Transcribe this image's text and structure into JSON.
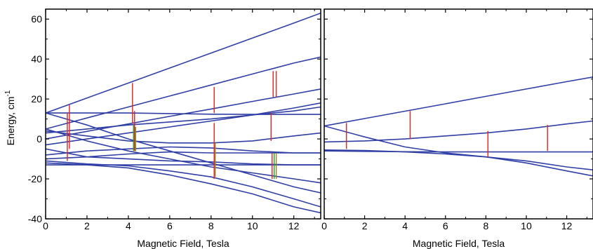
{
  "colors": {
    "curve": "#2f3fa5",
    "transition_red": "#e32222",
    "transition_green": "#2e9a2e",
    "transition_olive": "#8a8a22",
    "axis": "#000000"
  },
  "shared_axis": {
    "ylabel": "Energy, cm",
    "ylabel_superscript": "-1"
  },
  "chart_data": [
    {
      "type": "line",
      "panel": "left",
      "xlabel": "Magnetic Field, Tesla",
      "ylabel": "Energy, cm-1",
      "xlim": [
        0,
        13.3
      ],
      "ylim": [
        -40,
        65
      ],
      "xticks": [
        "0",
        "2",
        "4",
        "6",
        "8",
        "10",
        "12"
      ],
      "yticks": [
        "-40",
        "-20",
        "0",
        "20",
        "40",
        "60"
      ],
      "series": [
        {
          "x": [
            0,
            2,
            4,
            6,
            8,
            10,
            12,
            13.3
          ],
          "values": [
            13,
            20.5,
            28,
            35.5,
            43,
            50.5,
            58,
            63
          ]
        },
        {
          "x": [
            0,
            2,
            4,
            6,
            8,
            10,
            12,
            13.3
          ],
          "values": [
            5,
            10.5,
            16,
            21.5,
            27,
            32.5,
            38,
            41
          ]
        },
        {
          "x": [
            0,
            2,
            4,
            6,
            8,
            10,
            12,
            13.3
          ],
          "values": [
            0,
            3.8,
            7.5,
            11.3,
            15,
            18.8,
            22.5,
            25
          ]
        },
        {
          "x": [
            0,
            2,
            4,
            6,
            8,
            10,
            12,
            13.3
          ],
          "values": [
            -3,
            0,
            3,
            6,
            9,
            12,
            15.5,
            18
          ]
        },
        {
          "x": [
            0,
            2,
            4,
            6,
            8,
            10,
            12,
            13.3
          ],
          "values": [
            13,
            13,
            13,
            12.7,
            12.4,
            12.3,
            12.3,
            12.3
          ]
        },
        {
          "x": [
            0,
            2,
            4,
            6,
            8,
            10,
            12,
            13.3
          ],
          "values": [
            3,
            5,
            7,
            8.5,
            10,
            12,
            14,
            16
          ]
        },
        {
          "x": [
            0,
            2,
            4,
            6,
            8,
            10,
            12,
            13.3
          ],
          "values": [
            4,
            1.5,
            -1,
            -2,
            -2,
            -1,
            1.5,
            3
          ]
        },
        {
          "x": [
            0,
            2,
            4,
            6,
            8,
            10,
            12,
            13.3
          ],
          "values": [
            -10,
            -9,
            -7.5,
            -6.5,
            -7,
            -7,
            -7,
            -7
          ]
        },
        {
          "x": [
            0,
            2,
            4,
            6,
            8,
            10,
            12,
            13.3
          ],
          "values": [
            -8,
            -6,
            -5,
            -4,
            -4.5,
            -6,
            -7,
            -7
          ]
        },
        {
          "x": [
            0,
            2,
            4,
            6,
            8,
            10,
            12,
            13.3
          ],
          "values": [
            -13,
            -13,
            -13,
            -13,
            -13,
            -13,
            -13,
            -13
          ]
        },
        {
          "x": [
            0,
            2,
            4,
            6,
            8,
            10,
            12,
            13.3
          ],
          "values": [
            -5,
            -9,
            -10,
            -11,
            -11.5,
            -12.5,
            -13,
            -13
          ]
        },
        {
          "x": [
            0,
            2,
            4,
            6,
            8,
            10,
            12,
            13.3
          ],
          "values": [
            5,
            -1,
            -6,
            -10,
            -14,
            -17,
            -20,
            -22
          ]
        },
        {
          "x": [
            0,
            2,
            4,
            6,
            8,
            10,
            12,
            13.3
          ],
          "values": [
            13,
            7,
            0,
            -6,
            -12,
            -18,
            -24,
            -27
          ]
        },
        {
          "x": [
            0,
            2,
            4,
            6,
            8,
            10,
            12,
            13.3
          ],
          "values": [
            -11,
            -12.5,
            -13.5,
            -16,
            -19,
            -24,
            -30,
            -34
          ]
        },
        {
          "x": [
            0,
            2,
            4,
            6,
            8,
            10,
            12,
            13.3
          ],
          "values": [
            -12,
            -13,
            -14.5,
            -18,
            -22.5,
            -27.5,
            -34,
            -37
          ]
        }
      ],
      "transitions": [
        {
          "x": 1.05,
          "y1": -11,
          "y2": 13,
          "color": "red"
        },
        {
          "x": 1.15,
          "y1": -5,
          "y2": 17,
          "color": "red"
        },
        {
          "x": 4.2,
          "y1": 8,
          "y2": 28,
          "color": "red"
        },
        {
          "x": 4.3,
          "y1": -6,
          "y2": 14,
          "color": "red"
        },
        {
          "x": 4.25,
          "y1": -6,
          "y2": 7,
          "color": "green"
        },
        {
          "x": 4.35,
          "y1": -6,
          "y2": 6,
          "color": "olive"
        },
        {
          "x": 8.15,
          "y1": 13,
          "y2": 26,
          "color": "red"
        },
        {
          "x": 8.15,
          "y1": -20,
          "y2": 8,
          "color": "red"
        },
        {
          "x": 8.2,
          "y1": -19,
          "y2": -2,
          "color": "olive"
        },
        {
          "x": 11.0,
          "y1": 21,
          "y2": 34,
          "color": "red"
        },
        {
          "x": 11.15,
          "y1": 21,
          "y2": 34,
          "color": "red"
        },
        {
          "x": 10.9,
          "y1": -1,
          "y2": 13,
          "color": "red"
        },
        {
          "x": 10.95,
          "y1": -20,
          "y2": -7,
          "color": "red"
        },
        {
          "x": 11.05,
          "y1": -20,
          "y2": -7,
          "color": "green"
        },
        {
          "x": 11.15,
          "y1": -20,
          "y2": -7,
          "color": "olive"
        }
      ]
    },
    {
      "type": "line",
      "panel": "right",
      "xlabel": "Magnetic Field, Tesla",
      "xlim": [
        0,
        13.3
      ],
      "ylim": [
        -40,
        65
      ],
      "xticks": [
        "0",
        "2",
        "4",
        "6",
        "8",
        "10",
        "12"
      ],
      "series": [
        {
          "x": [
            0,
            2,
            4,
            6,
            8,
            10,
            12,
            13.3
          ],
          "values": [
            6.5,
            10.2,
            13.9,
            17.6,
            21.3,
            25,
            28.7,
            31
          ]
        },
        {
          "x": [
            0,
            2,
            4,
            6,
            8,
            10,
            12,
            13.3
          ],
          "values": [
            -1.5,
            -1,
            0,
            1.5,
            3,
            5,
            7.5,
            9
          ]
        },
        {
          "x": [
            0,
            2,
            4,
            6,
            8,
            10,
            12,
            13.3
          ],
          "values": [
            6.5,
            1,
            -4,
            -7,
            -9,
            -11,
            -14,
            -15.5
          ]
        },
        {
          "x": [
            0,
            2,
            4,
            6,
            8,
            10,
            12,
            13.3
          ],
          "values": [
            -6,
            -6.2,
            -6.4,
            -6.5,
            -6.5,
            -6.5,
            -6.5,
            -6.5
          ]
        },
        {
          "x": [
            0,
            2,
            4,
            6,
            8,
            10,
            12,
            13.3
          ],
          "values": [
            -5.5,
            -5.8,
            -6.5,
            -7.5,
            -9,
            -12,
            -16,
            -18.5
          ]
        }
      ],
      "transitions": [
        {
          "x": 1.1,
          "y1": -5,
          "y2": 8,
          "color": "red"
        },
        {
          "x": 4.25,
          "y1": 0,
          "y2": 14,
          "color": "red"
        },
        {
          "x": 8.1,
          "y1": -9,
          "y2": 4,
          "color": "red"
        },
        {
          "x": 11.05,
          "y1": -6,
          "y2": 7,
          "color": "red"
        }
      ]
    }
  ]
}
